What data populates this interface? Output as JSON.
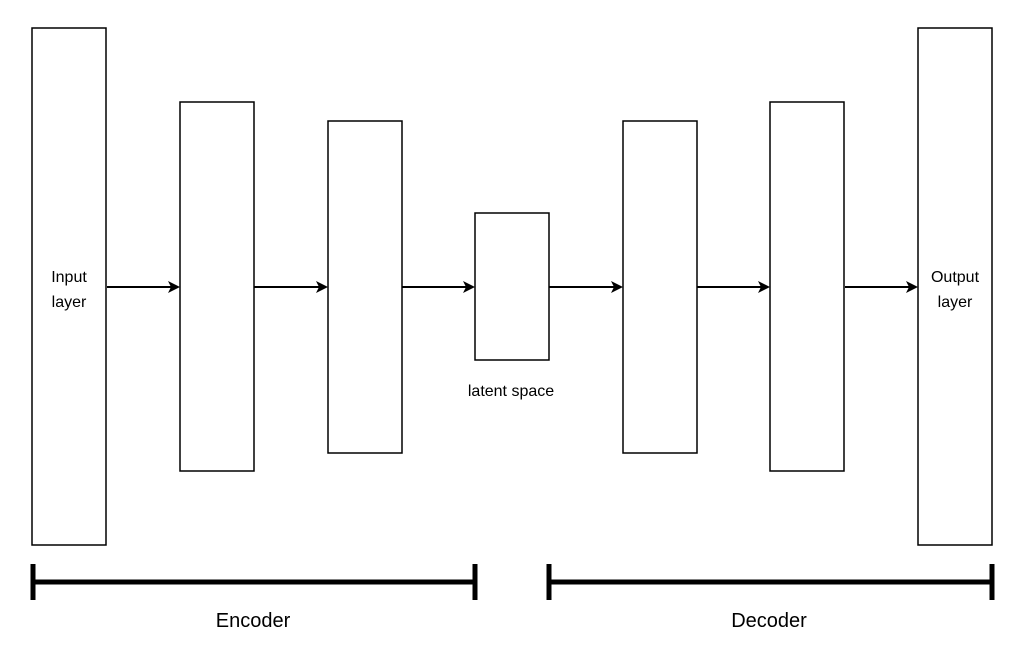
{
  "diagram": {
    "nodes": {
      "input_layer": {
        "label_lines": [
          "Input",
          "layer"
        ]
      },
      "encoder_layer_1": {
        "label_lines": []
      },
      "encoder_layer_2": {
        "label_lines": []
      },
      "latent_space": {
        "label": "latent space"
      },
      "decoder_layer_1": {
        "label_lines": []
      },
      "decoder_layer_2": {
        "label_lines": []
      },
      "output_layer": {
        "label_lines": [
          "Output",
          "layer"
        ]
      }
    },
    "edges": [
      {
        "from": "input_layer",
        "to": "encoder_layer_1"
      },
      {
        "from": "encoder_layer_1",
        "to": "encoder_layer_2"
      },
      {
        "from": "encoder_layer_2",
        "to": "latent_space"
      },
      {
        "from": "latent_space",
        "to": "decoder_layer_1"
      },
      {
        "from": "decoder_layer_1",
        "to": "decoder_layer_2"
      },
      {
        "from": "decoder_layer_2",
        "to": "output_layer"
      }
    ],
    "groups": {
      "encoder": {
        "label": "Encoder"
      },
      "decoder": {
        "label": "Decoder"
      }
    }
  },
  "colors": {
    "stroke": "#000000",
    "fill": "#ffffff"
  }
}
